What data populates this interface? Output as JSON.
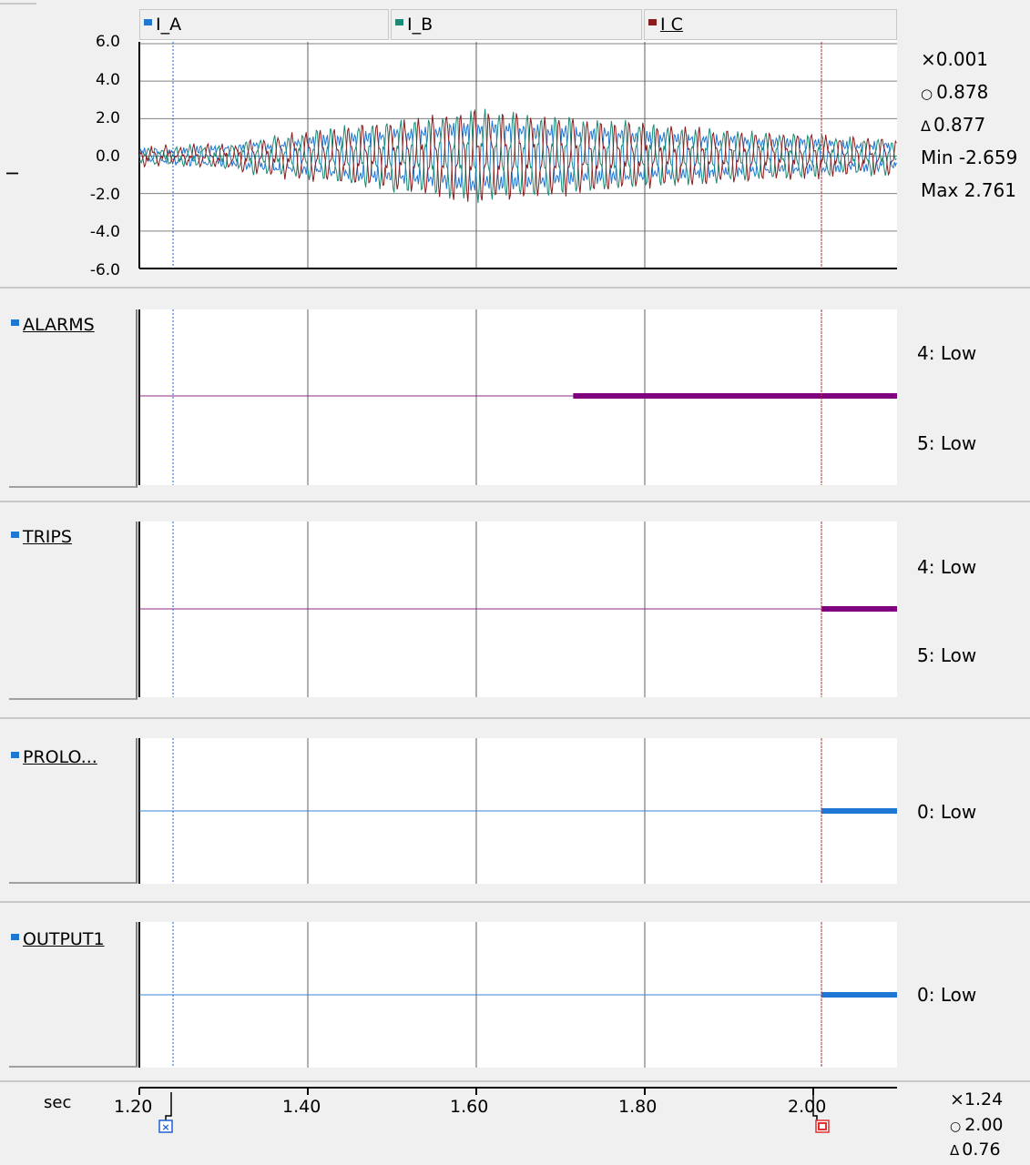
{
  "analog": {
    "y_label": "I",
    "y_ticks": [
      "6.0",
      "4.0",
      "2.0",
      "0.0",
      "-2.0",
      "-4.0",
      "-6.0"
    ],
    "channels": [
      {
        "name": "I_A",
        "color": "#1f77d4"
      },
      {
        "name": "I_B",
        "color": "#1a8a74"
      },
      {
        "name": "I C",
        "color": "#8b1a1a"
      }
    ],
    "stats": {
      "cursor_x": "0.001",
      "cursor_o": "0.878",
      "delta": "0.877",
      "min": "Min -2.659",
      "max": "Max 2.761"
    },
    "symbols": {
      "x": "×",
      "o": "○",
      "delta": "Δ"
    }
  },
  "digital": [
    {
      "name": "ALARMS",
      "state_top": "4: Low",
      "state_bottom": "5: Low",
      "color": "#800080",
      "thin_color": "#8a2a8a",
      "step_at": 1.715
    },
    {
      "name": "TRIPS",
      "state_top": "4: Low",
      "state_bottom": "5: Low",
      "color": "#800080",
      "thin_color": "#8a2a8a",
      "step_at": 2.01
    },
    {
      "name": "PROLO...",
      "state_mid": "0: Low",
      "color": "#1f77d4",
      "thin_color": "#3a86d8",
      "step_at": 2.01
    },
    {
      "name": "OUTPUT1",
      "state_mid": "0: Low",
      "color": "#1f77d4",
      "thin_color": "#3a86d8",
      "step_at": 2.01
    }
  ],
  "time_axis": {
    "unit": "sec",
    "ticks": [
      "1.20",
      "1.40",
      "1.60",
      "1.80",
      "2.00"
    ],
    "cursor_x": "1.24",
    "cursor_o": "2.00",
    "delta": "0.76"
  }
}
